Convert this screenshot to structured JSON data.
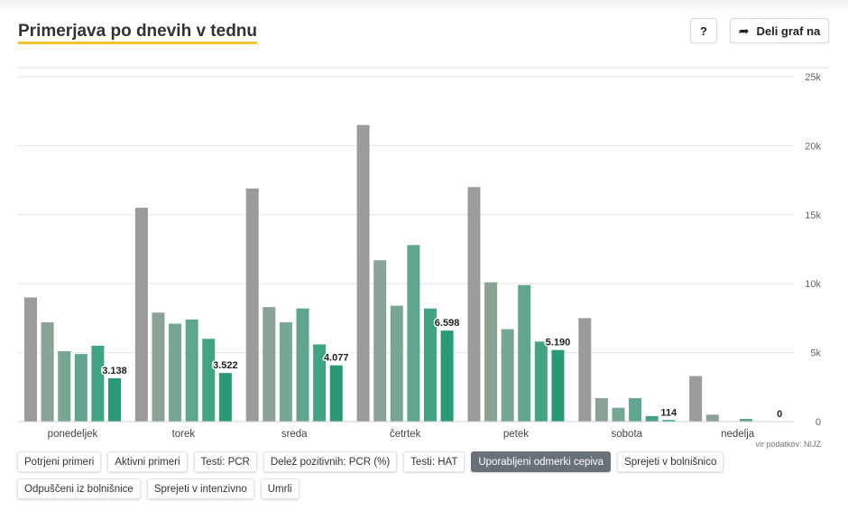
{
  "header": {
    "title": "Primerjava po dnevih v tednu",
    "help_label": "?",
    "share_label": "Deli graf na",
    "share_icon": "share-arrow-icon"
  },
  "chart_data": {
    "type": "bar",
    "categories": [
      "ponedeljek",
      "torek",
      "sreda",
      "četrtek",
      "petek",
      "sobota",
      "nedelja"
    ],
    "series_colors": [
      "#9b9b9b",
      "#8aa395",
      "#75a792",
      "#5fa68d",
      "#40a383",
      "#2a9a76"
    ],
    "series": [
      {
        "values": [
          9000,
          15500,
          16900,
          21500,
          17000,
          7500,
          3300
        ]
      },
      {
        "values": [
          7200,
          7900,
          8300,
          11700,
          10100,
          1700,
          500
        ]
      },
      {
        "values": [
          5100,
          7100,
          7200,
          8400,
          6700,
          1000,
          0
        ]
      },
      {
        "values": [
          4900,
          7400,
          8200,
          12800,
          9900,
          1700,
          200
        ]
      },
      {
        "values": [
          5500,
          6000,
          5600,
          8200,
          5800,
          400,
          0
        ]
      },
      {
        "values": [
          3138,
          3522,
          4077,
          6598,
          5190,
          114,
          0
        ]
      }
    ],
    "data_labels": [
      "3.138",
      "3.522",
      "4.077",
      "6.598",
      "5.190",
      "114",
      "0"
    ],
    "yticks": [
      {
        "value": 0,
        "label": "0"
      },
      {
        "value": 5000,
        "label": "5k"
      },
      {
        "value": 10000,
        "label": "10k"
      },
      {
        "value": 15000,
        "label": "15k"
      },
      {
        "value": 20000,
        "label": "20k"
      },
      {
        "value": 25000,
        "label": "25k"
      }
    ],
    "ylim": [
      0,
      25000
    ],
    "axis_side": "right",
    "grid": true,
    "source": "vir podatkov: NIJZ"
  },
  "filters": [
    {
      "label": "Potrjeni primeri",
      "active": false
    },
    {
      "label": "Aktivni primeri",
      "active": false
    },
    {
      "label": "Testi: PCR",
      "active": false
    },
    {
      "label": "Delež pozitivnih: PCR (%)",
      "active": false
    },
    {
      "label": "Testi: HAT",
      "active": false
    },
    {
      "label": "Uporabljeni odmerki cepiva",
      "active": true
    },
    {
      "label": "Sprejeti v bolnišnico",
      "active": false
    },
    {
      "label": "Odpuščeni iz bolnišnice",
      "active": false
    },
    {
      "label": "Sprejeti v intenzivno",
      "active": false
    },
    {
      "label": "Umrli",
      "active": false
    }
  ]
}
